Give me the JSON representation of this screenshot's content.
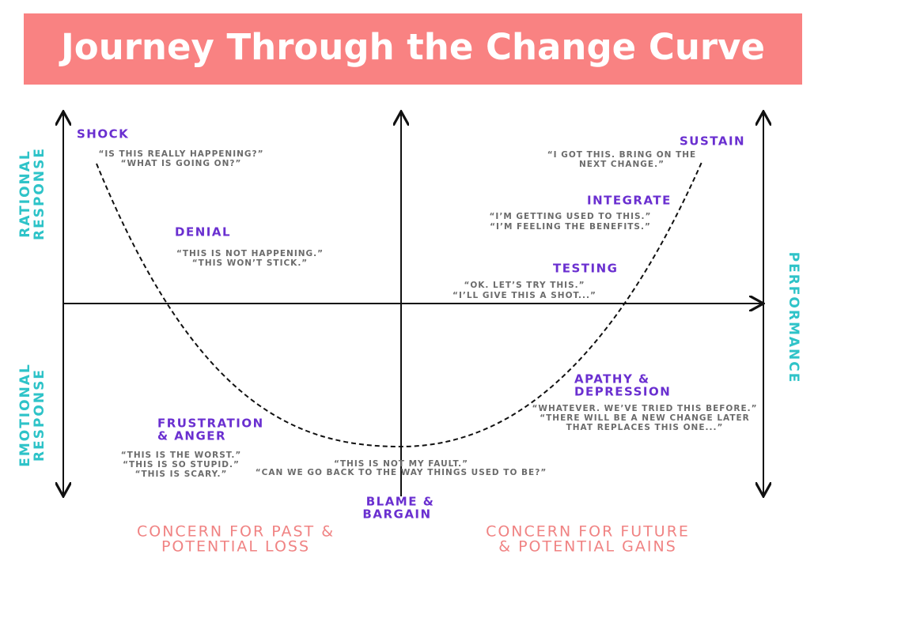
{
  "title": "Journey Through the Change Curve",
  "axis_labels": {
    "top_left": [
      "RATIONAL",
      "RESPONSE"
    ],
    "bottom_left": [
      "EMOTIONAL",
      "RESPONSE"
    ],
    "right": "PERFORMANCE"
  },
  "bottom_labels": {
    "left": [
      "CONCERN FOR PAST &",
      "POTENTIAL LOSS"
    ],
    "right": [
      "CONCERN FOR FUTURE",
      "& POTENTIAL GAINS"
    ]
  },
  "stages": [
    {
      "name": [
        "SHOCK"
      ],
      "quotes": [
        "“IS THIS REALLY HAPPENING?”",
        "“WHAT IS GOING ON?”"
      ]
    },
    {
      "name": [
        "DENIAL"
      ],
      "quotes": [
        "“THIS IS NOT HAPPENING.”",
        "“THIS WON’T STICK.”"
      ]
    },
    {
      "name": [
        "FRUSTRATION",
        "& ANGER"
      ],
      "quotes": [
        "“THIS IS THE WORST.”",
        "“THIS IS SO STUPID.”",
        "“THIS IS SCARY.”"
      ]
    },
    {
      "name": [
        "BLAME &",
        "BARGAIN"
      ],
      "quotes": [
        "“THIS IS NOT MY FAULT.”",
        "“CAN WE GO BACK TO THE WAY THINGS USED TO BE?”"
      ]
    },
    {
      "name": [
        "APATHY &",
        "DEPRESSION"
      ],
      "quotes": [
        "“WHATEVER. WE’VE TRIED THIS BEFORE.”",
        "“THERE WILL BE A NEW CHANGE LATER",
        "THAT REPLACES THIS ONE...”"
      ]
    },
    {
      "name": [
        "TESTING"
      ],
      "quotes": [
        "“OK. LET’S TRY THIS.”",
        "“I’LL GIVE THIS A SHOT...”"
      ]
    },
    {
      "name": [
        "INTEGRATE"
      ],
      "quotes": [
        "“I’M GETTING USED TO THIS.”",
        "“I’M FEELING THE BENEFITS.”"
      ]
    },
    {
      "name": [
        "SUSTAIN"
      ],
      "quotes": [
        "“I GOT THIS. BRING ON THE",
        "NEXT CHANGE.”"
      ]
    }
  ]
}
